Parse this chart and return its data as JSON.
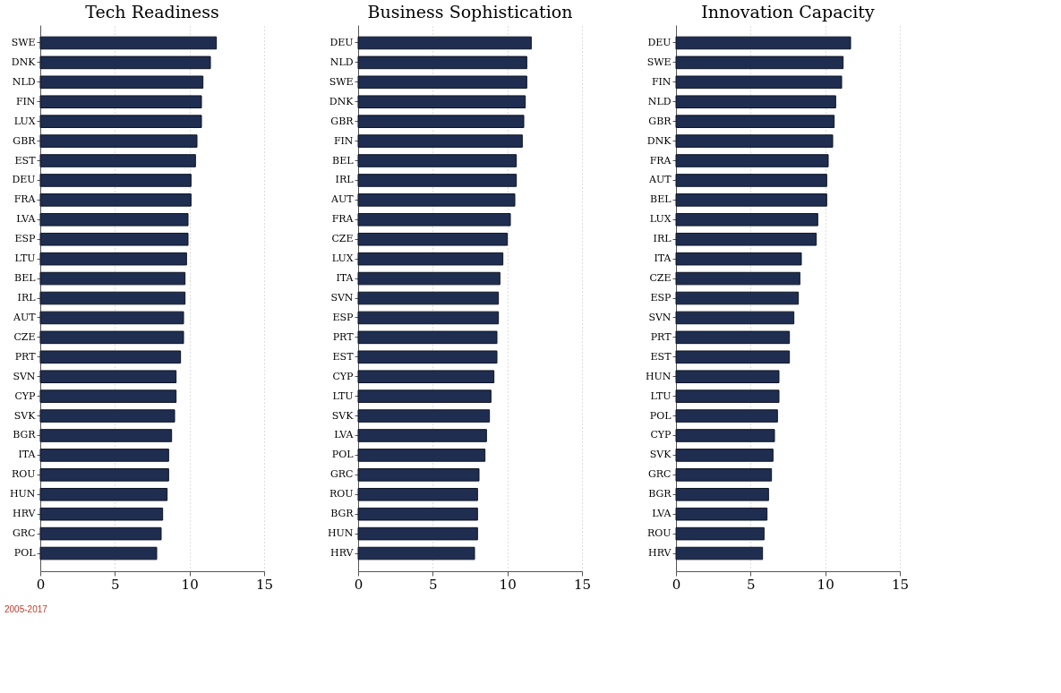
{
  "chart_data": [
    {
      "type": "bar",
      "orientation": "horizontal",
      "title": "Tech Readiness",
      "color": "#1f2d50",
      "xlim": [
        0,
        15
      ],
      "xticks": [
        0,
        5,
        10,
        15
      ],
      "grid": "x",
      "categories": [
        "SWE",
        "DNK",
        "NLD",
        "FIN",
        "LUX",
        "GBR",
        "EST",
        "DEU",
        "FRA",
        "LVA",
        "ESP",
        "LTU",
        "BEL",
        "IRL",
        "AUT",
        "CZE",
        "PRT",
        "SVN",
        "CYP",
        "SVK",
        "BGR",
        "ITA",
        "ROU",
        "HUN",
        "HRV",
        "GRC",
        "POL"
      ],
      "values": [
        11.8,
        11.4,
        10.9,
        10.8,
        10.8,
        10.5,
        10.4,
        10.1,
        10.1,
        9.9,
        9.9,
        9.8,
        9.7,
        9.7,
        9.6,
        9.6,
        9.4,
        9.1,
        9.1,
        9.0,
        8.8,
        8.6,
        8.6,
        8.5,
        8.2,
        8.1,
        7.8
      ],
      "annotations": [
        "2005-2017"
      ]
    },
    {
      "type": "bar",
      "orientation": "horizontal",
      "title": "Business Sophistication",
      "color": "#1f2d50",
      "xlim": [
        0,
        15
      ],
      "xticks": [
        0,
        5,
        10,
        15
      ],
      "grid": "x",
      "categories": [
        "DEU",
        "NLD",
        "SWE",
        "DNK",
        "GBR",
        "FIN",
        "BEL",
        "IRL",
        "AUT",
        "FRA",
        "CZE",
        "LUX",
        "ITA",
        "SVN",
        "ESP",
        "PRT",
        "EST",
        "CYP",
        "LTU",
        "SVK",
        "LVA",
        "POL",
        "GRC",
        "ROU",
        "BGR",
        "HUN",
        "HRV"
      ],
      "values": [
        11.6,
        11.3,
        11.3,
        11.2,
        11.1,
        11.0,
        10.6,
        10.6,
        10.5,
        10.2,
        10.0,
        9.7,
        9.5,
        9.4,
        9.4,
        9.3,
        9.3,
        9.1,
        8.9,
        8.8,
        8.6,
        8.5,
        8.1,
        8.0,
        8.0,
        8.0,
        7.8
      ]
    },
    {
      "type": "bar",
      "orientation": "horizontal",
      "title": "Innovation Capacity",
      "color": "#1f2d50",
      "xlim": [
        0,
        15
      ],
      "xticks": [
        0,
        5,
        10,
        15
      ],
      "grid": "x",
      "categories": [
        "DEU",
        "SWE",
        "FIN",
        "NLD",
        "GBR",
        "DNK",
        "FRA",
        "AUT",
        "BEL",
        "LUX",
        "IRL",
        "ITA",
        "CZE",
        "ESP",
        "SVN",
        "PRT",
        "EST",
        "HUN",
        "LTU",
        "POL",
        "CYP",
        "SVK",
        "GRC",
        "BGR",
        "LVA",
        "ROU",
        "HRV"
      ],
      "values": [
        11.7,
        11.2,
        11.1,
        10.7,
        10.6,
        10.5,
        10.2,
        10.1,
        10.1,
        9.5,
        9.4,
        8.4,
        8.3,
        8.2,
        7.9,
        7.6,
        7.6,
        6.9,
        6.9,
        6.8,
        6.6,
        6.5,
        6.4,
        6.2,
        6.1,
        5.9,
        5.8
      ]
    }
  ]
}
